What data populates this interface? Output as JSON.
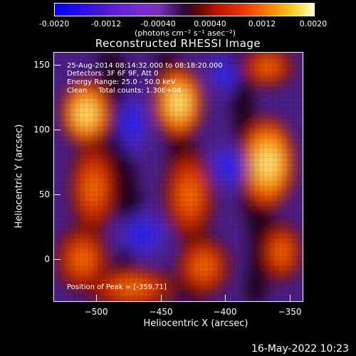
{
  "colorbar": {
    "ticks": [
      "-0.0020",
      "-0.0012",
      "-0.00040",
      "0.00040",
      "0.0012",
      "0.0020"
    ],
    "units": "(photons cm⁻² s⁻¹ asec⁻²)"
  },
  "title": "Reconstructed RHESSI Image",
  "info": {
    "time": "25-Aug-2014 08:14:32.000 to 08:18:20.000",
    "detectors": "Detectors: 3F 6F 9F, Att 0",
    "energy": "Energy Range: 25.0 - 50.0 keV",
    "clean": "Clean     Total counts: 1.30E+04",
    "peak": "Position of Peak = [-359,71]"
  },
  "axes": {
    "xlabel": "Heliocentric X (arcsec)",
    "ylabel": "Heliocentric Y (arcsec)",
    "xticks": [
      "−500",
      "−450",
      "−400",
      "−350"
    ],
    "yticks": [
      "150",
      "100",
      "50",
      "0"
    ]
  },
  "timestamp": "16-May-2022 10:23",
  "colors": {
    "background": "#000000",
    "text": "#ffffff"
  }
}
